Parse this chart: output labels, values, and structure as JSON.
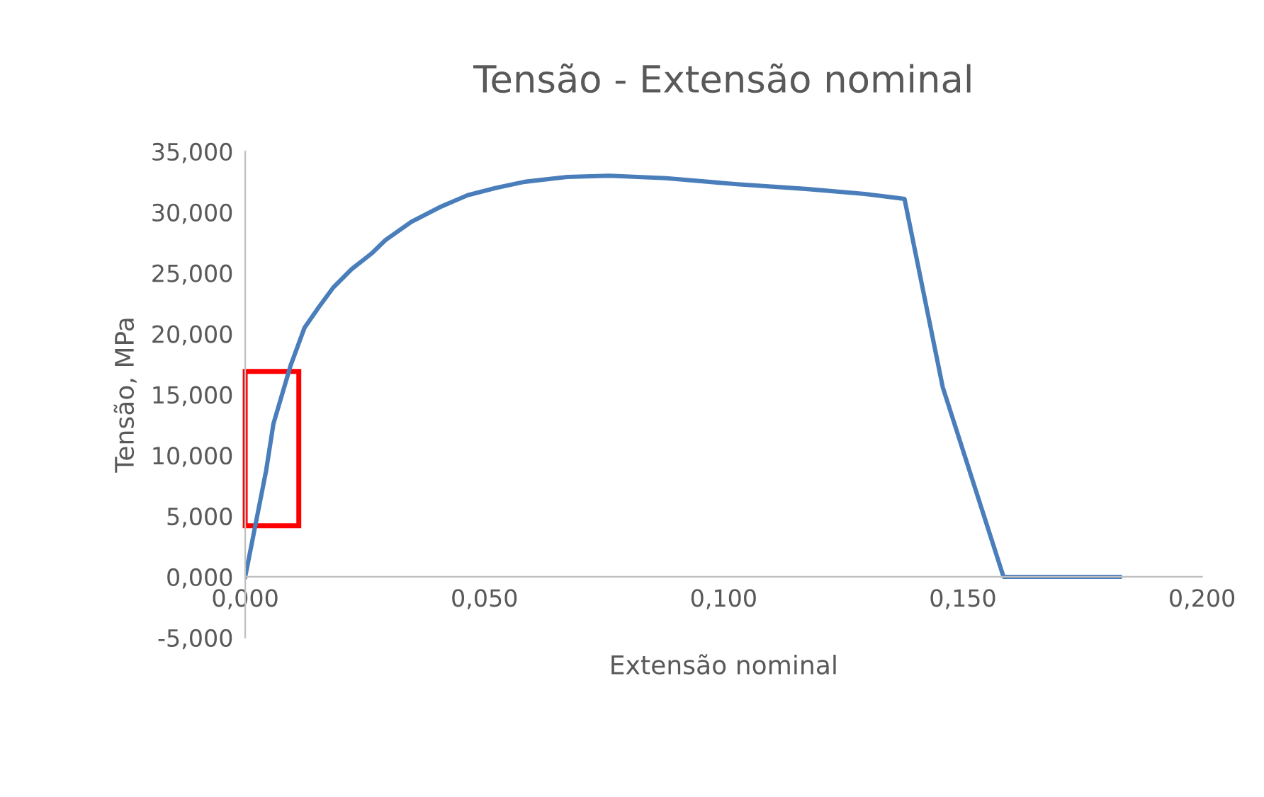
{
  "chart_data": {
    "type": "line",
    "title": "Tensão - Extensão nominal",
    "xlabel": "Extensão nominal",
    "ylabel": "Tensão, MPa",
    "series": [
      {
        "color": "#4a7ebb",
        "x": [
          0,
          0.0036,
          0.0044,
          0.0059,
          0.0095,
          0.0124,
          0.0154,
          0.0184,
          0.0222,
          0.0264,
          0.0293,
          0.0347,
          0.0406,
          0.0465,
          0.0524,
          0.0584,
          0.0673,
          0.0761,
          0.088,
          0.1028,
          0.1176,
          0.1295,
          0.1378,
          0.1458,
          0.1585,
          0.1828
        ],
        "values": [
          0,
          7.2,
          8.8,
          12.6,
          17.4,
          20.5,
          22.2,
          23.8,
          25.3,
          26.6,
          27.7,
          29.2,
          30.4,
          31.4,
          32.0,
          32.5,
          32.9,
          33.0,
          32.8,
          32.3,
          31.9,
          31.5,
          31.1,
          15.6,
          0,
          0
        ]
      }
    ],
    "xlim": [
      0,
      0.2
    ],
    "ylim": [
      -5,
      35
    ],
    "xticks": [
      {
        "value": 0,
        "label": "0,000"
      },
      {
        "value": 0.05,
        "label": "0,050"
      },
      {
        "value": 0.1,
        "label": "0,100"
      },
      {
        "value": 0.15,
        "label": "0,150"
      },
      {
        "value": 0.2,
        "label": "0,200"
      }
    ],
    "yticks": [
      {
        "value": -5,
        "label": "-5,000"
      },
      {
        "value": 0,
        "label": "0,000"
      },
      {
        "value": 5,
        "label": "5,000"
      },
      {
        "value": 10,
        "label": "10,000"
      },
      {
        "value": 15,
        "label": "15,000"
      },
      {
        "value": 20,
        "label": "20,000"
      },
      {
        "value": 25,
        "label": "25,000"
      },
      {
        "value": 30,
        "label": "30,000"
      },
      {
        "value": 35,
        "label": "35,000"
      }
    ],
    "grid": false,
    "legend": false,
    "marker": "none",
    "line_style": "solid"
  }
}
